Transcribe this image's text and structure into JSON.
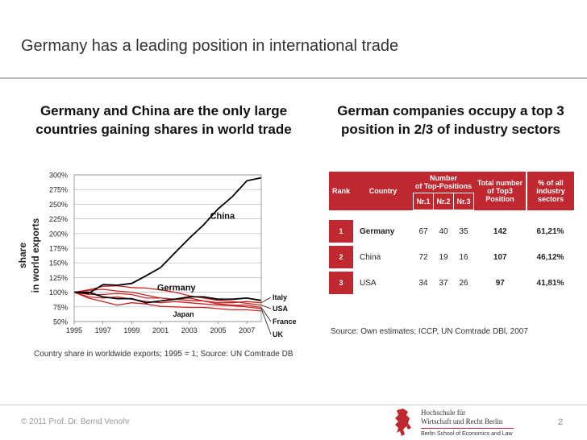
{
  "slide": {
    "title": "Germany has a leading position in international trade",
    "left_headline": "Germany and China are the only large countries gaining shares in world trade",
    "right_headline": "German companies occupy a top 3 position in 2/3 of industry sectors",
    "caption": "Country share in worldwide exports; 1995 = 1; Source: UN Comtrade DB",
    "footer": "© 2011 Prof. Dr. Bernd Venohr",
    "page_number": "2"
  },
  "chart_data": {
    "type": "line",
    "ylabel": "share in world exports",
    "ylabel_line1": "share",
    "ylabel_line2": "in world exports",
    "x": [
      1995,
      1996,
      1997,
      1998,
      1999,
      2000,
      2001,
      2002,
      2003,
      2004,
      2005,
      2006,
      2007,
      2008
    ],
    "xticks": [
      "1995",
      "1997",
      "1999",
      "2001",
      "2003",
      "2005",
      "2007"
    ],
    "yticks": [
      "50%",
      "75%",
      "100%",
      "125%",
      "150%",
      "175%",
      "200%",
      "225%",
      "250%",
      "275%",
      "300%"
    ],
    "ylim": [
      50,
      300
    ],
    "grid": true,
    "series": [
      {
        "name": "China",
        "color": "#000000",
        "values": [
          100,
          98,
          113,
          112,
          115,
          128,
          142,
          167,
          192,
          215,
          242,
          263,
          290,
          295
        ]
      },
      {
        "name": "Germany",
        "color": "#000000",
        "values": [
          100,
          100,
          92,
          89,
          89,
          82,
          85,
          88,
          92,
          92,
          88,
          88,
          90,
          86
        ]
      },
      {
        "name": "Italy",
        "color": "#cc2222",
        "values": [
          100,
          103,
          105,
          102,
          100,
          95,
          90,
          88,
          90,
          85,
          82,
          82,
          84,
          82
        ]
      },
      {
        "name": "USA",
        "color": "#cc2222",
        "values": [
          100,
          104,
          110,
          111,
          108,
          107,
          104,
          100,
          94,
          90,
          86,
          84,
          81,
          78
        ]
      },
      {
        "name": "France",
        "color": "#cc2222",
        "values": [
          100,
          96,
          96,
          98,
          96,
          90,
          90,
          88,
          86,
          85,
          80,
          78,
          78,
          74
        ]
      },
      {
        "name": "UK",
        "color": "#cc2222",
        "values": [
          100,
          92,
          90,
          92,
          88,
          84,
          82,
          84,
          82,
          80,
          78,
          77,
          75,
          72
        ]
      },
      {
        "name": "Japan",
        "color": "#cc2222",
        "values": [
          100,
          90,
          84,
          78,
          82,
          80,
          76,
          75,
          74,
          74,
          72,
          70,
          70,
          68
        ]
      }
    ],
    "labels": {
      "china": "China",
      "germany": "Germany",
      "japan": "Japan",
      "italy": "Italy",
      "usa": "USA",
      "france": "France",
      "uk": "UK"
    }
  },
  "rank_table": {
    "header": {
      "rank": "Rank",
      "country": "Country",
      "number": "Number of Top-Positions",
      "number_line1": "Number",
      "number_line2": "of Top-Positions",
      "nr1": "Nr.1",
      "nr2": "Nr.2",
      "nr3": "Nr.3",
      "total_line1": "Total number",
      "total_line2": "of Top3",
      "total_line3": "Position",
      "pct_line1": "%   of all",
      "pct_line2": "industry",
      "pct_line3": "sectors"
    },
    "rows": [
      {
        "rank": "1",
        "country": "Germany",
        "nr1": "67",
        "nr2": "40",
        "nr3": "35",
        "total": "142",
        "pct": "61,21%"
      },
      {
        "rank": "2",
        "country": "China",
        "nr1": "72",
        "nr2": "19",
        "nr3": "16",
        "total": "107",
        "pct": "46,12%"
      },
      {
        "rank": "3",
        "country": "USA",
        "nr1": "34",
        "nr2": "37",
        "nr3": "26",
        "total": "97",
        "pct": "41,81%"
      }
    ],
    "source": "Source: Own estimates;  ICCP, UN Comtrade DBl, 2007"
  },
  "logo": {
    "line1": "Hochschule für",
    "line2": "Wirtschaft und Recht Berlin",
    "line3": "Berlin School of Economics and Law",
    "bear_color": "#c0282f"
  }
}
